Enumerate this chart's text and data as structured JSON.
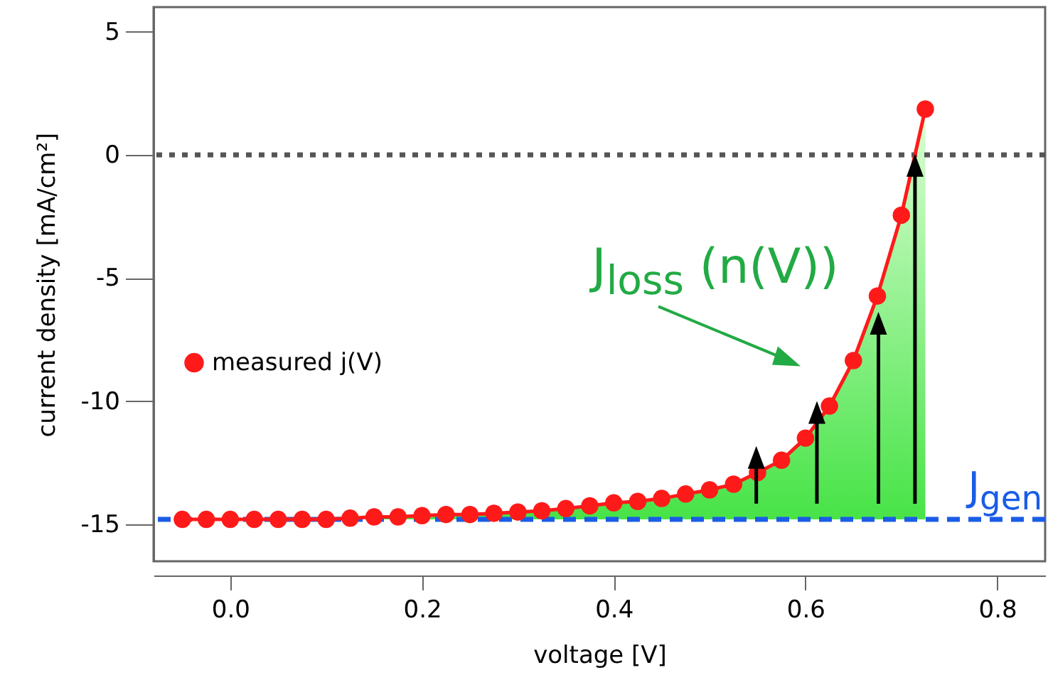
{
  "chart_data": {
    "type": "line",
    "xlabel": "voltage [V]",
    "ylabel": "current density  [mA/cm²]",
    "x": [
      -0.05,
      -0.025,
      0,
      0.025,
      0.05,
      0.075,
      0.1,
      0.125,
      0.15,
      0.175,
      0.2,
      0.225,
      0.25,
      0.275,
      0.3,
      0.325,
      0.35,
      0.375,
      0.4,
      0.425,
      0.45,
      0.475,
      0.5,
      0.525,
      0.55,
      0.575,
      0.6,
      0.625,
      0.65,
      0.675,
      0.7,
      0.725
    ],
    "series": [
      {
        "name": "measured j(V)",
        "color": "#ff1a1a",
        "values": [
          -14.8,
          -14.8,
          -14.8,
          -14.8,
          -14.8,
          -14.8,
          -14.8,
          -14.75,
          -14.7,
          -14.7,
          -14.65,
          -14.6,
          -14.6,
          -14.55,
          -14.5,
          -14.45,
          -14.36,
          -14.25,
          -14.13,
          -14.07,
          -13.95,
          -13.77,
          -13.6,
          -13.37,
          -12.9,
          -12.4,
          -11.5,
          -10.2,
          -8.35,
          -5.73,
          -2.45,
          1.86
        ],
        "lower": [
          -14.8,
          -14.8,
          -14.8,
          -14.8,
          -14.8,
          -14.8,
          -14.8,
          -14.8,
          -14.8,
          -14.8,
          -14.8,
          -14.8,
          -14.8,
          -14.8,
          -14.8,
          -14.8,
          -14.8,
          -14.8,
          -14.8,
          -14.8,
          -14.8,
          -14.8,
          -14.8,
          -14.8,
          -14.8,
          -14.8,
          -14.8,
          -14.8,
          -14.8,
          -14.8,
          -14.8,
          -14.8
        ],
        "upper": [
          -14.8,
          -14.8,
          -14.8,
          -14.8,
          -14.8,
          -14.8,
          -14.8,
          -14.75,
          -14.7,
          -14.7,
          -14.65,
          -14.6,
          -14.6,
          -14.55,
          -14.5,
          -14.45,
          -14.36,
          -14.25,
          -14.13,
          -14.07,
          -13.95,
          -13.77,
          -13.6,
          -13.37,
          -12.9,
          -12.4,
          -11.5,
          -10.2,
          -8.35,
          -5.73,
          -2.45,
          1.86
        ]
      }
    ],
    "xlim": [
      -0.08,
      0.85
    ],
    "ylim": [
      -16.5,
      6
    ],
    "xticks": [
      {
        "value": 0,
        "label": "0.0"
      },
      {
        "value": 0.2,
        "label": "0.2"
      },
      {
        "value": 0.4,
        "label": "0.4"
      },
      {
        "value": 0.6,
        "label": "0.6"
      },
      {
        "value": 0.8,
        "label": "0.8"
      }
    ],
    "yticks": [
      -15,
      -10,
      -5,
      0,
      5
    ],
    "ref_lines": [
      {
        "axis": "y",
        "value": 0,
        "color": "#555555",
        "line_style": "dotted"
      },
      {
        "axis": "y",
        "value": -14.8,
        "label": "J$_{gen}$",
        "color": "#1a5ce6",
        "line_style": "dashed"
      }
    ],
    "annotations": [
      "J$_{loss}$ (n(V))"
    ],
    "legend": "left",
    "marker": "circle",
    "line_style": "solid",
    "grid": false
  }
}
